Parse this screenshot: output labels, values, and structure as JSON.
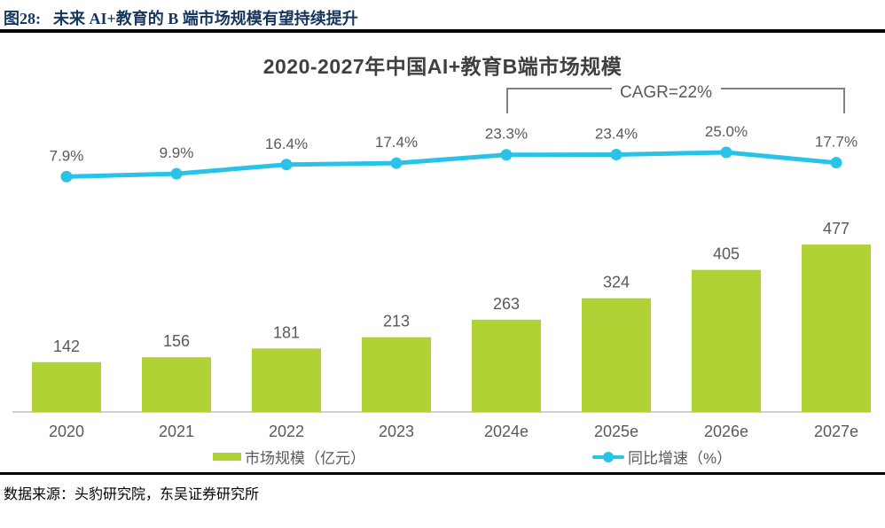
{
  "header": {
    "figure_label": "图28:",
    "title": "未来 AI+教育的 B 端市场规模有望持续提升"
  },
  "footer": {
    "source": "数据来源：头豹研究院，东吴证券研究所"
  },
  "colors": {
    "bar": "#b0d235",
    "line": "#29c3ea",
    "header_accent": "#17365d",
    "label_gray": "#595959",
    "axis_gray": "#bfbfbf",
    "bracket_gray": "#808080"
  },
  "chart_data": {
    "type": "bar",
    "title": "2020-2027年中国AI+教育B端市场规模",
    "categories": [
      "2020",
      "2021",
      "2022",
      "2023",
      "2024e",
      "2025e",
      "2026e",
      "2027e"
    ],
    "series": [
      {
        "name": "市场规模（亿元）",
        "type": "bar",
        "color": "#b0d235",
        "values": [
          142,
          156,
          181,
          213,
          263,
          324,
          405,
          477
        ]
      },
      {
        "name": "同比增速（%）",
        "type": "line",
        "color": "#29c3ea",
        "values": [
          7.9,
          9.9,
          16.4,
          17.4,
          23.3,
          23.4,
          25.0,
          17.7
        ],
        "labels": [
          "7.9%",
          "9.9%",
          "16.4%",
          "17.4%",
          "23.3%",
          "23.4%",
          "25.0%",
          "17.7%"
        ]
      }
    ],
    "annotation": {
      "text": "CAGR=22%",
      "span_categories": [
        "2024e",
        "2027e"
      ]
    },
    "xlabel": "",
    "ylabel": "",
    "ylim_bar": [
      0,
      500
    ],
    "grid": false,
    "legend_position": "bottom"
  }
}
